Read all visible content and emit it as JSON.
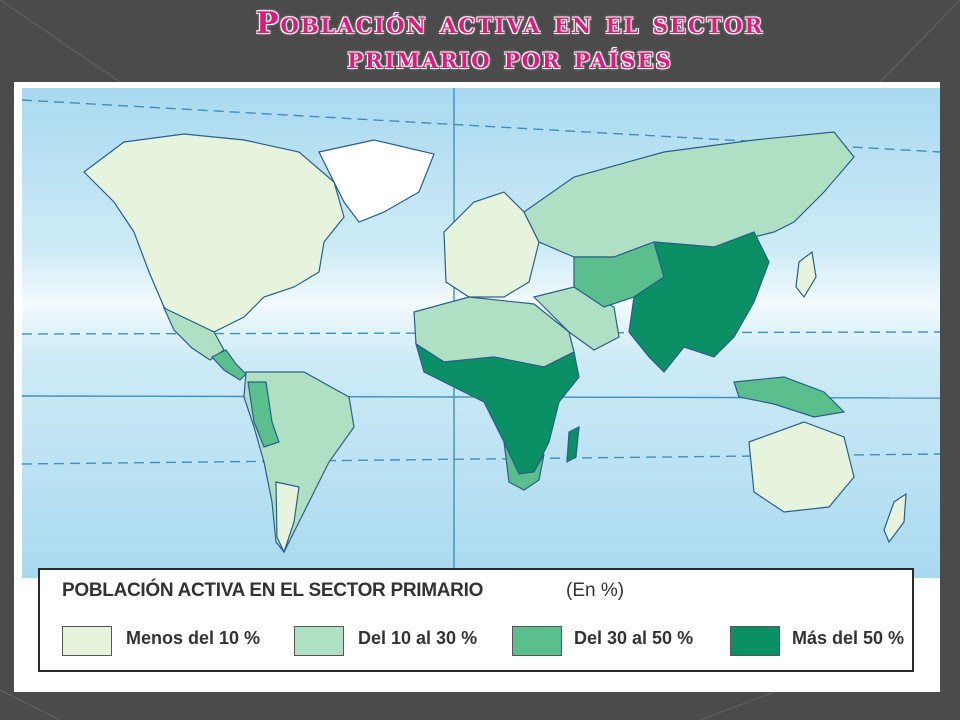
{
  "title_line1": "Población activa en el sector",
  "title_line2": "primario por países",
  "legend": {
    "title": "POBLACIÓN ACTIVA EN EL SECTOR PRIMARIO",
    "unit": "(En %)",
    "items": [
      {
        "label": "Menos del 10  %",
        "color": "#e6f4de"
      },
      {
        "label": "Del 10 al 30  %",
        "color": "#b0e0c3"
      },
      {
        "label": "Del 30 al 50  %",
        "color": "#5bbf8d"
      },
      {
        "label": "Más del 50  %",
        "color": "#0b8f64"
      }
    ]
  },
  "colors": {
    "title": "#e0197a",
    "ocean": "#bfe3f2",
    "no_data": "#ffffff"
  }
}
